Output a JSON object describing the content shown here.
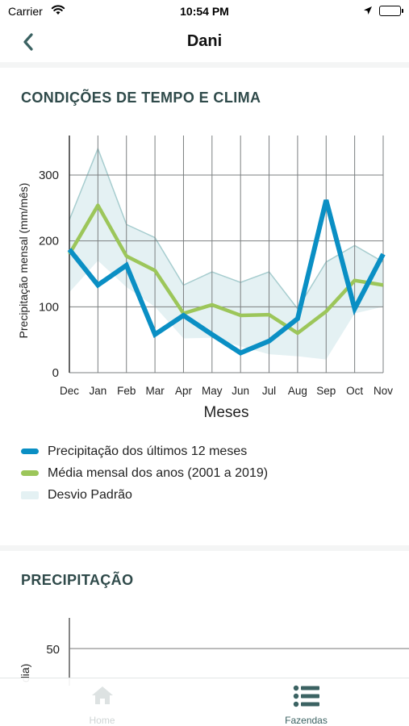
{
  "status_bar": {
    "carrier": "Carrier",
    "time": "10:54 PM"
  },
  "nav": {
    "title": "Dani",
    "back_icon": "chevron-left-icon"
  },
  "section1": {
    "title": "CONDIÇÕES DE TEMPO E CLIMA"
  },
  "chart_data": [
    {
      "type": "line",
      "title": "",
      "xlabel": "Meses",
      "ylabel": "Precipitação mensal (mm/mês)",
      "ylim": [
        0,
        360
      ],
      "yticks": [
        0,
        100,
        200,
        300
      ],
      "grid": true,
      "legend_position": "bottom",
      "categories": [
        "Dec",
        "Jan",
        "Feb",
        "Mar",
        "Apr",
        "May",
        "Jun",
        "Jul",
        "Aug",
        "Sep",
        "Oct",
        "Nov"
      ],
      "series": [
        {
          "name": "Precipitação dos últimos 12 meses",
          "color": "#0a8fc4",
          "values": [
            187,
            133,
            163,
            58,
            87,
            58,
            30,
            48,
            82,
            262,
            97,
            180
          ]
        },
        {
          "name": "Média mensal dos anos (2001 a 2019)",
          "color": "#9cc65a",
          "values": [
            180,
            254,
            177,
            155,
            90,
            103,
            87,
            88,
            60,
            93,
            140,
            133
          ]
        },
        {
          "name": "Desvio Padrão",
          "type": "band",
          "color": "#e4f1f3",
          "upper": [
            232,
            340,
            225,
            205,
            133,
            153,
            137,
            153,
            97,
            168,
            193,
            168
          ],
          "lower": [
            122,
            170,
            130,
            100,
            52,
            53,
            40,
            28,
            25,
            20,
            90,
            100
          ]
        }
      ]
    },
    {
      "type": "line",
      "title": "",
      "ylabel": "dia)",
      "yticks": [
        50
      ],
      "series": []
    }
  ],
  "section2": {
    "title": "PRECIPITAÇÃO"
  },
  "tabs": [
    {
      "label": "Home",
      "icon": "house-icon"
    },
    {
      "label": "Fazendas",
      "icon": "list-icon"
    }
  ]
}
